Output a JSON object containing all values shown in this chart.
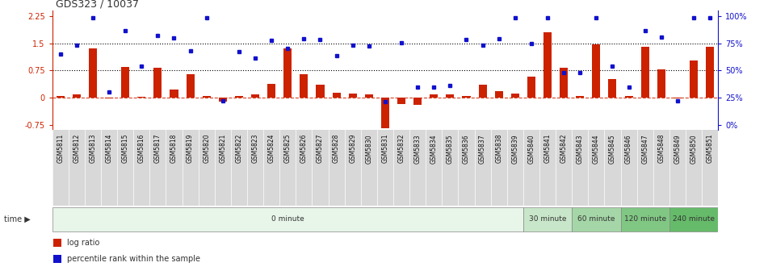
{
  "title": "GDS323 / 10037",
  "categories": [
    "GSM5811",
    "GSM5812",
    "GSM5813",
    "GSM5814",
    "GSM5815",
    "GSM5816",
    "GSM5817",
    "GSM5818",
    "GSM5819",
    "GSM5820",
    "GSM5821",
    "GSM5822",
    "GSM5823",
    "GSM5824",
    "GSM5825",
    "GSM5826",
    "GSM5827",
    "GSM5828",
    "GSM5829",
    "GSM5830",
    "GSM5831",
    "GSM5832",
    "GSM5833",
    "GSM5834",
    "GSM5835",
    "GSM5836",
    "GSM5837",
    "GSM5838",
    "GSM5839",
    "GSM5840",
    "GSM5841",
    "GSM5842",
    "GSM5843",
    "GSM5844",
    "GSM5845",
    "GSM5846",
    "GSM5847",
    "GSM5848",
    "GSM5849",
    "GSM5850",
    "GSM5851"
  ],
  "log_ratio": [
    0.05,
    0.08,
    1.35,
    -0.02,
    0.85,
    0.02,
    0.83,
    0.22,
    0.65,
    0.05,
    -0.12,
    0.05,
    0.08,
    0.38,
    1.35,
    0.65,
    0.35,
    0.13,
    0.1,
    0.08,
    -0.85,
    -0.18,
    -0.2,
    0.08,
    0.08,
    0.04,
    0.35,
    0.18,
    0.12,
    0.58,
    1.8,
    0.82,
    0.04,
    1.48,
    0.52,
    0.04,
    1.4,
    0.77,
    -0.02,
    1.02,
    1.4
  ],
  "percentile_lax": [
    1.2,
    1.45,
    2.2,
    0.15,
    1.85,
    0.88,
    1.72,
    1.65,
    1.3,
    2.2,
    -0.08,
    1.28,
    1.1,
    1.58,
    1.35,
    1.63,
    1.6,
    1.15,
    1.45,
    1.42,
    -0.12,
    1.52,
    0.3,
    0.28,
    0.33,
    1.6,
    1.45,
    1.62,
    2.2,
    1.5,
    2.2,
    0.68,
    0.68,
    2.2,
    0.88,
    0.28,
    1.85,
    1.68,
    -0.08,
    2.2,
    2.2
  ],
  "bar_color": "#cc2200",
  "dot_color": "#1111cc",
  "ylim": [
    -0.9,
    2.4
  ],
  "yticks_left": [
    -0.75,
    0.0,
    0.75,
    1.5,
    2.25
  ],
  "ytick_labels_left": [
    "-0.75",
    "0",
    "0.75",
    "1.5",
    "2.25"
  ],
  "right_tick_positions": [
    -0.75,
    0.0,
    0.75,
    1.5,
    2.25
  ],
  "right_tick_labels": [
    "0%",
    "25%",
    "50%",
    "75%",
    "100%"
  ],
  "dotted_lines": [
    0.75,
    1.5
  ],
  "time_groups": [
    {
      "label": "0 minute",
      "start": 0,
      "end": 29,
      "color": "#e8f5e9"
    },
    {
      "label": "30 minute",
      "start": 29,
      "end": 32,
      "color": "#c8e6c9"
    },
    {
      "label": "60 minute",
      "start": 32,
      "end": 35,
      "color": "#a5d6a7"
    },
    {
      "label": "120 minute",
      "start": 35,
      "end": 38,
      "color": "#81c784"
    },
    {
      "label": "240 minute",
      "start": 38,
      "end": 41,
      "color": "#66bb6a"
    }
  ],
  "legend": [
    {
      "label": "log ratio",
      "color": "#cc2200"
    },
    {
      "label": "percentile rank within the sample",
      "color": "#1111cc"
    }
  ],
  "title_color": "#333333",
  "right_axis_color": "#1111cc",
  "bar_width": 0.5,
  "tick_fontsize": 7,
  "bar_fontsize": 5.5,
  "xtick_bg": "#d8d8d8"
}
